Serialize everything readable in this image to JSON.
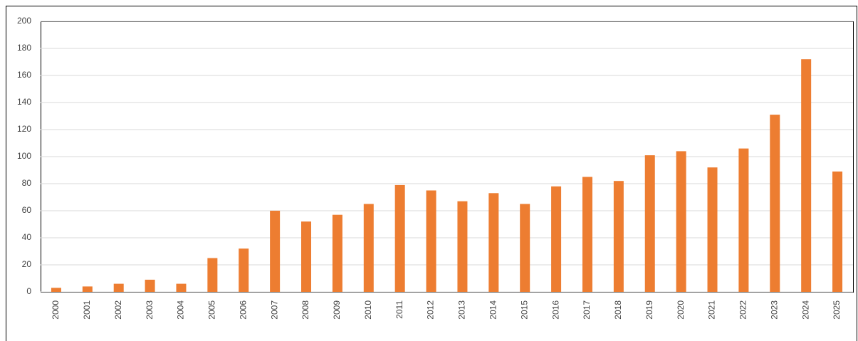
{
  "chart_data": {
    "type": "bar",
    "categories": [
      "2000",
      "2001",
      "2002",
      "2003",
      "2004",
      "2005",
      "2006",
      "2007",
      "2008",
      "2009",
      "2010",
      "2011",
      "2012",
      "2013",
      "2014",
      "2015",
      "2016",
      "2017",
      "2018",
      "2019",
      "2020",
      "2021",
      "2022",
      "2023",
      "2024",
      "2025"
    ],
    "values": [
      3,
      4,
      6,
      9,
      6,
      25,
      32,
      60,
      52,
      57,
      65,
      79,
      75,
      67,
      73,
      65,
      78,
      85,
      82,
      101,
      104,
      92,
      106,
      131,
      172,
      89
    ],
    "color": "#ed7d31",
    "ylim": [
      0,
      200
    ],
    "yticks": [
      0,
      20,
      40,
      60,
      80,
      100,
      120,
      140,
      160,
      180,
      200
    ],
    "grid": true
  }
}
